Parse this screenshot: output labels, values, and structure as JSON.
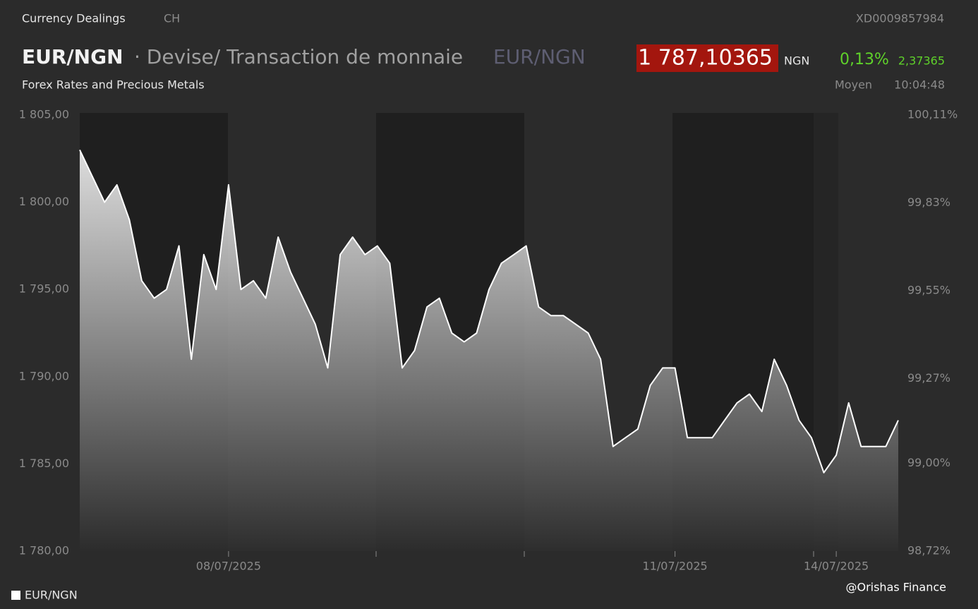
{
  "header": {
    "section": "Currency Dealings",
    "country": "CH",
    "isin": "XD0009857984",
    "symbol": "EUR/NGN",
    "description": "· Devise/ Transaction de monnaie",
    "symbol_alt": "EUR/NGN",
    "price": "1 787,10365",
    "currency": "NGN",
    "change_pct": "0,13%",
    "change_abs": "2,37365",
    "category": "Forex Rates and Precious Metals",
    "price_type": "Moyen",
    "time": "10:04:48"
  },
  "chart_data": {
    "type": "area",
    "categories": [
      null,
      null,
      null,
      null,
      null,
      null,
      null,
      null,
      null,
      null,
      null,
      null,
      "08/07/2025",
      null,
      null,
      null,
      null,
      null,
      null,
      null,
      null,
      null,
      null,
      null,
      null,
      null,
      null,
      null,
      null,
      null,
      null,
      null,
      null,
      null,
      null,
      null,
      null,
      null,
      null,
      null,
      null,
      null,
      null,
      null,
      null,
      null,
      null,
      null,
      "11/07/2025",
      null,
      null,
      null,
      null,
      null,
      null,
      null,
      null,
      null,
      null,
      null,
      null,
      "14/07/2025",
      null,
      null,
      null,
      null,
      null
    ],
    "series": [
      {
        "name": "EUR/NGN",
        "color": "#ffffff",
        "values": [
          1803,
          1801.5,
          1800,
          1801,
          1799,
          1795.5,
          1794.5,
          1795,
          1797.5,
          1791,
          1797,
          1795,
          1801,
          1795,
          1795.5,
          1794.5,
          1798,
          1796,
          1794.5,
          1793,
          1790.5,
          1797,
          1798,
          1797,
          1797.5,
          1796.5,
          1790.5,
          1791.5,
          1794,
          1794.5,
          1792.5,
          1792,
          1792.5,
          1795,
          1796.5,
          1797,
          1797.5,
          1794,
          1793.5,
          1793.5,
          1793,
          1792.5,
          1791,
          1786,
          1786.5,
          1787,
          1789.5,
          1790.5,
          1790.5,
          1786.5,
          1786.5,
          1786.5,
          1787.5,
          1788.5,
          1789,
          1788,
          1791,
          1789.5,
          1787.5,
          1786.5,
          1784.5,
          1785.5,
          1788.5,
          1786,
          1786,
          1786,
          1787.5
        ]
      }
    ],
    "ylim": [
      1780,
      1805
    ],
    "yticks": [
      {
        "value": 1805,
        "label": "1 805,00"
      },
      {
        "value": 1800,
        "label": "1 800,00"
      },
      {
        "value": 1795,
        "label": "1 795,00"
      },
      {
        "value": 1790,
        "label": "1 790,00"
      },
      {
        "value": 1785,
        "label": "1 785,00"
      },
      {
        "value": 1780,
        "label": "1 780,00"
      }
    ],
    "y2lim": [
      98.72,
      100.11
    ],
    "y2ticks": [
      {
        "value": 100.11,
        "label": "100,11%"
      },
      {
        "value": 99.83,
        "label": "99,83%"
      },
      {
        "value": 99.55,
        "label": "99,55%"
      },
      {
        "value": 99.27,
        "label": "99,27%"
      },
      {
        "value": 99.0,
        "label": "99,00%"
      },
      {
        "value": 98.72,
        "label": "98,72%"
      }
    ],
    "grid": false
  },
  "watermark": "@Orishas Finance"
}
